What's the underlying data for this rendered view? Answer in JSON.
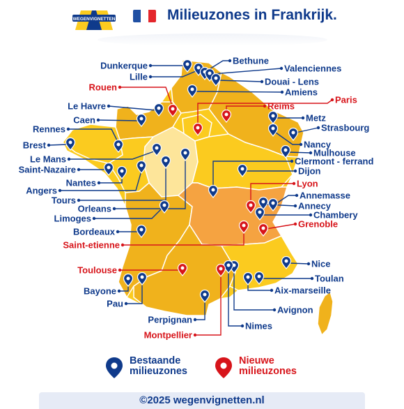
{
  "header": {
    "logo_text": "WEGENVIGNETTEN",
    "title": "Milieuzones in Frankrijk."
  },
  "colors": {
    "existing": "#0f3a8b",
    "new": "#d7141a",
    "region_light": "#fde59a",
    "region_mid": "#fbcb1f",
    "region_dark": "#f0b21c",
    "region_orange": "#f5a341",
    "flag_blue": "#1f4fa3",
    "flag_white": "#ffffff",
    "flag_red": "#e4262c"
  },
  "cities": [
    {
      "name": "Dunkerque",
      "status": "existing"
    },
    {
      "name": "Lille",
      "status": "existing"
    },
    {
      "name": "Bethune",
      "status": "existing"
    },
    {
      "name": "Valenciennes",
      "status": "existing"
    },
    {
      "name": "Douai - Lens",
      "status": "existing"
    },
    {
      "name": "Amiens",
      "status": "existing"
    },
    {
      "name": "Rouen",
      "status": "new"
    },
    {
      "name": "Paris",
      "status": "new"
    },
    {
      "name": "Reims",
      "status": "new"
    },
    {
      "name": "Le Havre",
      "status": "existing"
    },
    {
      "name": "Caen",
      "status": "existing"
    },
    {
      "name": "Metz",
      "status": "existing"
    },
    {
      "name": "Strasbourg",
      "status": "existing"
    },
    {
      "name": "Rennes",
      "status": "existing"
    },
    {
      "name": "Brest",
      "status": "existing"
    },
    {
      "name": "Nancy",
      "status": "existing"
    },
    {
      "name": "Mulhouse",
      "status": "existing"
    },
    {
      "name": "Le Mans",
      "status": "existing"
    },
    {
      "name": "Clermont - ferrand",
      "status": "existing"
    },
    {
      "name": "Saint-Nazaire",
      "status": "existing"
    },
    {
      "name": "Dijon",
      "status": "existing"
    },
    {
      "name": "Nantes",
      "status": "existing"
    },
    {
      "name": "Lyon",
      "status": "new"
    },
    {
      "name": "Angers",
      "status": "existing"
    },
    {
      "name": "Annemasse",
      "status": "existing"
    },
    {
      "name": "Tours",
      "status": "existing"
    },
    {
      "name": "Annecy",
      "status": "existing"
    },
    {
      "name": "Orleans",
      "status": "existing"
    },
    {
      "name": "Chambery",
      "status": "existing"
    },
    {
      "name": "Limoges",
      "status": "existing"
    },
    {
      "name": "Grenoble",
      "status": "new"
    },
    {
      "name": "Bordeaux",
      "status": "existing"
    },
    {
      "name": "Saint-etienne",
      "status": "new"
    },
    {
      "name": "Toulouse",
      "status": "new"
    },
    {
      "name": "Nice",
      "status": "existing"
    },
    {
      "name": "Bayone",
      "status": "existing"
    },
    {
      "name": "Toulan",
      "status": "existing"
    },
    {
      "name": "Aix-marseille",
      "status": "existing"
    },
    {
      "name": "Pau",
      "status": "existing"
    },
    {
      "name": "Avignon",
      "status": "existing"
    },
    {
      "name": "Perpignan",
      "status": "existing"
    },
    {
      "name": "Nimes",
      "status": "existing"
    },
    {
      "name": "Montpellier",
      "status": "new"
    }
  ],
  "legend": {
    "existing_line1": "Bestaande",
    "existing_line2": "milieuzones",
    "new_line1": "Nieuwe",
    "new_line2": "milieuzones"
  },
  "footer": {
    "text": "©2025 wegenvignetten.nl"
  }
}
